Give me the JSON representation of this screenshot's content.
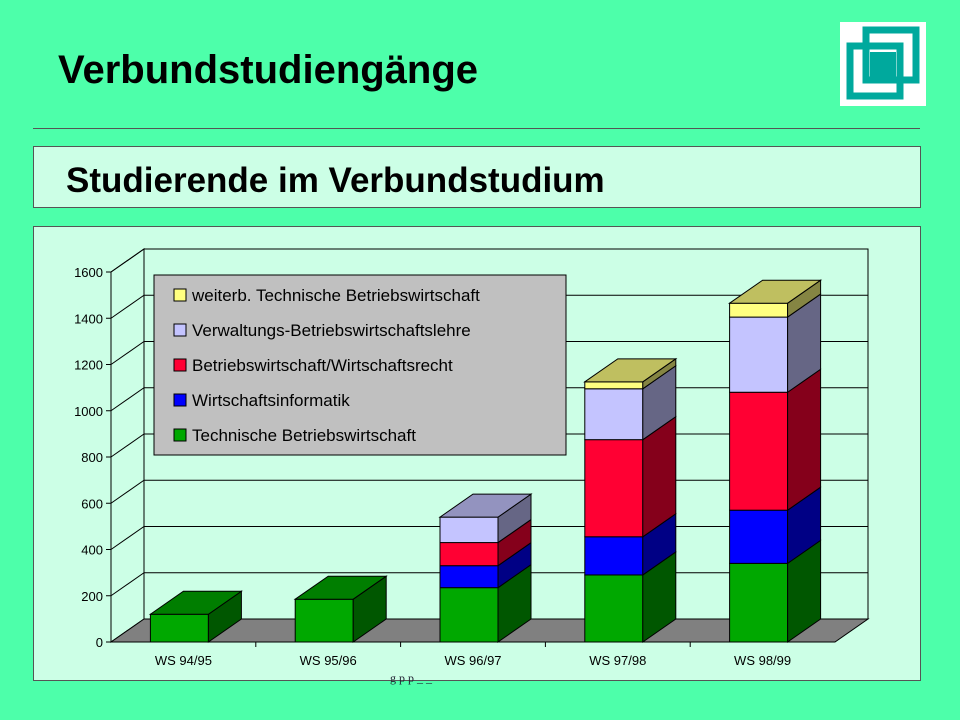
{
  "header": {
    "title": "Verbundstudiengänge"
  },
  "logo": {
    "icon": "stacked-squares-logo-icon",
    "color": "#00a99d"
  },
  "panel": {
    "subtitle": "Studierende im Verbundstudium"
  },
  "footer": {
    "text": "g p p _ _"
  },
  "chart_data": {
    "type": "bar",
    "stacked": true,
    "three_d": true,
    "categories": [
      "WS 94/95",
      "WS 95/96",
      "WS 96/97",
      "WS 97/98",
      "WS 98/99"
    ],
    "series": [
      {
        "name": "Technische Betriebswirtschaft",
        "color": "#00a800",
        "values": [
          120,
          185,
          235,
          290,
          340
        ]
      },
      {
        "name": "Wirtschaftsinformatik",
        "color": "#0000ff",
        "values": [
          0,
          0,
          95,
          165,
          230
        ]
      },
      {
        "name": "Betriebswirtschaft/Wirtschaftsrecht",
        "color": "#ff0033",
        "values": [
          0,
          0,
          100,
          420,
          510
        ]
      },
      {
        "name": "Verwaltungs-Betriebswirtschaftslehre",
        "color": "#c4c4ff",
        "values": [
          0,
          0,
          110,
          220,
          325
        ]
      },
      {
        "name": "weiterb. Technische Betriebswirtschaft",
        "color": "#ffff80",
        "values": [
          0,
          0,
          0,
          30,
          60
        ]
      }
    ],
    "yticks": [
      0,
      200,
      400,
      600,
      800,
      1000,
      1200,
      1400,
      1600
    ],
    "ylim": [
      0,
      1600
    ],
    "grid": true,
    "legend_position": "top-left",
    "legend_order": [
      "weiterb. Technische Betriebswirtschaft",
      "Verwaltungs-Betriebswirtschaftslehre",
      "Betriebswirtschaft/Wirtschaftsrecht",
      "Wirtschaftsinformatik",
      "Technische Betriebswirtschaft"
    ],
    "xlabel": "",
    "ylabel": ""
  }
}
